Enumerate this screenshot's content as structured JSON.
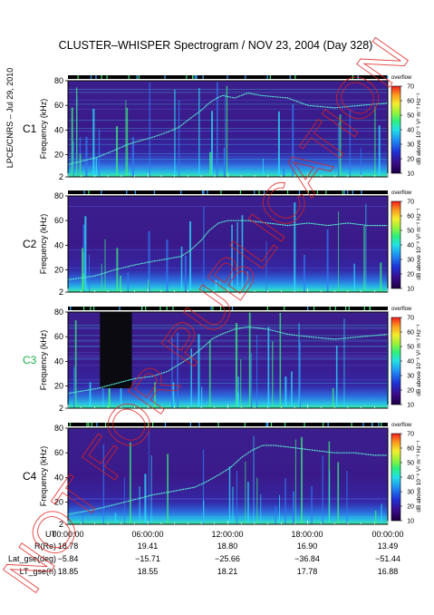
{
  "chart_data": {
    "type": "heatmap",
    "title": "CLUSTER–WHISPER Spectrogram / NOV 23, 2004 (Day 328)",
    "side_label": "LPCE/CNRS – Jul 29, 2010",
    "watermark": "NOT FOR PUBLICATION",
    "ylabel": "Frequency (kHz)",
    "yticks": [
      "80",
      "60",
      "40",
      "20",
      "2"
    ],
    "ylim": [
      2,
      80
    ],
    "colorbar": {
      "ticks": [
        "70",
        "60",
        "50",
        "40",
        "30",
        "20",
        "10"
      ],
      "label": "dB above 10⁻⁸ V² m⁻² Hz⁻¹",
      "range": [
        10,
        70
      ],
      "top_label": "overflow"
    },
    "panels": [
      {
        "name": "C1",
        "name_color": "#000000",
        "plasma_line_khz": [
          [
            0.0,
            12
          ],
          [
            2.2,
            18
          ],
          [
            3.6,
            24
          ],
          [
            4.4,
            28
          ],
          [
            5.0,
            30
          ],
          [
            6.3,
            34
          ],
          [
            7.4,
            38
          ],
          [
            8.3,
            42
          ],
          [
            9.0,
            48
          ],
          [
            10.0,
            56
          ],
          [
            10.6,
            62
          ],
          [
            11.2,
            66
          ],
          [
            11.6,
            68
          ],
          [
            12.5,
            66
          ],
          [
            13.5,
            70
          ],
          [
            14.5,
            68
          ],
          [
            16.5,
            66
          ],
          [
            18.0,
            60
          ],
          [
            20.0,
            58
          ],
          [
            22.0,
            60
          ],
          [
            24.0,
            62
          ]
        ]
      },
      {
        "name": "C2",
        "name_color": "#000000",
        "plasma_line_khz": [
          [
            0.0,
            12
          ],
          [
            2.0,
            15
          ],
          [
            3.5,
            20
          ],
          [
            5.0,
            24
          ],
          [
            6.4,
            27
          ],
          [
            7.5,
            29
          ],
          [
            8.5,
            31
          ],
          [
            9.2,
            36
          ],
          [
            10.0,
            44
          ],
          [
            10.6,
            52
          ],
          [
            11.3,
            58
          ],
          [
            12.0,
            60
          ],
          [
            13.5,
            60
          ],
          [
            15.0,
            58
          ],
          [
            16.5,
            56
          ],
          [
            18.0,
            58
          ],
          [
            19.5,
            56
          ],
          [
            21.0,
            58
          ],
          [
            22.5,
            56
          ],
          [
            24.0,
            56
          ]
        ]
      },
      {
        "name": "C3",
        "name_color": "#19b04a",
        "plasma_line_khz": [
          [
            0.0,
            14
          ],
          [
            2.2,
            18
          ],
          [
            3.6,
            22
          ],
          [
            5.0,
            26
          ],
          [
            6.4,
            28
          ],
          [
            7.5,
            32
          ],
          [
            8.4,
            38
          ],
          [
            9.3,
            44
          ],
          [
            10.2,
            52
          ],
          [
            10.8,
            58
          ],
          [
            11.5,
            62
          ],
          [
            12.5,
            66
          ],
          [
            13.5,
            68
          ],
          [
            15.0,
            66
          ],
          [
            16.5,
            62
          ],
          [
            18.0,
            60
          ],
          [
            20.0,
            58
          ],
          [
            22.0,
            60
          ],
          [
            24.0,
            62
          ]
        ],
        "data_gap_hours": [
          2.4,
          4.8
        ]
      },
      {
        "name": "C4",
        "name_color": "#000000",
        "plasma_line_khz": [
          [
            0.0,
            10
          ],
          [
            2.0,
            14
          ],
          [
            3.5,
            18
          ],
          [
            5.0,
            22
          ],
          [
            6.4,
            26
          ],
          [
            7.5,
            28
          ],
          [
            8.5,
            30
          ],
          [
            9.5,
            32
          ],
          [
            10.3,
            36
          ],
          [
            11.3,
            42
          ],
          [
            12.2,
            48
          ],
          [
            13.0,
            56
          ],
          [
            13.8,
            62
          ],
          [
            14.6,
            66
          ],
          [
            15.5,
            66
          ],
          [
            17.0,
            64
          ],
          [
            18.5,
            62
          ],
          [
            20.0,
            60
          ],
          [
            21.5,
            60
          ],
          [
            23.0,
            58
          ],
          [
            24.0,
            58
          ]
        ]
      }
    ],
    "ephemeris": {
      "labels": [
        "UT",
        "R(Re)",
        "Lat_gse(deg)",
        "LT_gse(h)"
      ],
      "columns": [
        [
          "00:00:00",
          "18.78",
          "−5.84",
          "18.85"
        ],
        [
          "06:00:00",
          "19.41",
          "−15.71",
          "18.55"
        ],
        [
          "12:00:00",
          "18.80",
          "−25.66",
          "18.21"
        ],
        [
          "18:00:00",
          "16.90",
          "−36.84",
          "17.78"
        ],
        [
          "00:00:00",
          "13.49",
          "−51.44",
          "16.88"
        ]
      ]
    }
  }
}
